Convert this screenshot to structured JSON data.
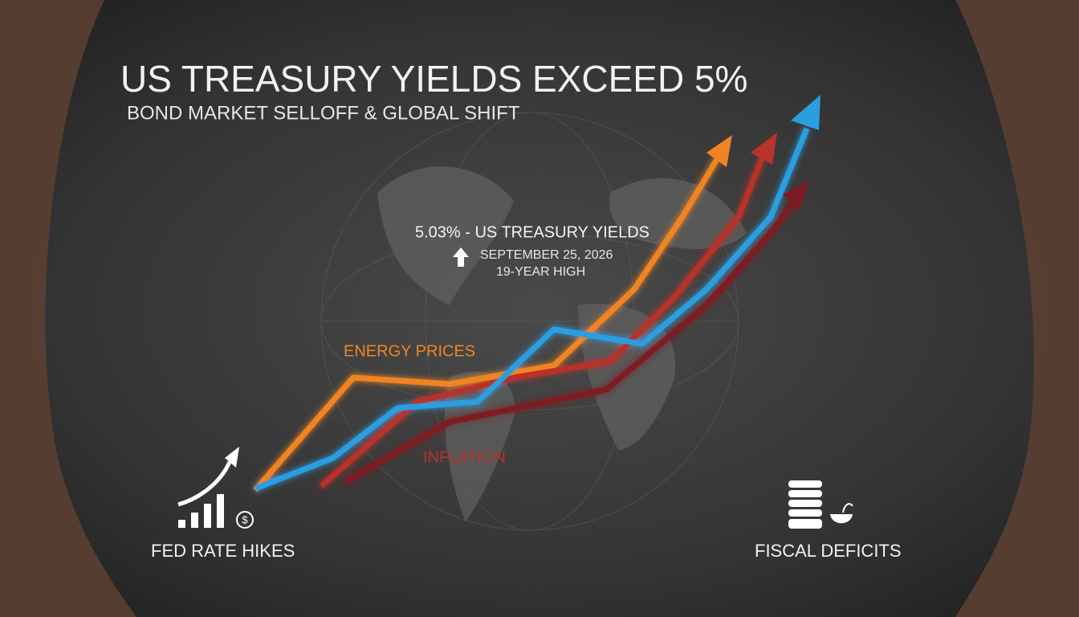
{
  "header": {
    "title": "US TREASURY YIELDS EXCEED 5%",
    "subtitle": "BOND MARKET SELLOFF & GLOBAL SHIFT"
  },
  "callout": {
    "headline": "5.03% - US TREASURY YIELDS",
    "date": "SEPTEMBER 25, 2026",
    "note": "19-YEAR HIGH"
  },
  "line_labels": {
    "energy": "ENERGY PRICES",
    "inflation": "INFLATION"
  },
  "icons": {
    "fed": {
      "label": "FED RATE HIKES",
      "symbol": "$"
    },
    "fiscal": {
      "label": "FISCAL DEFICITS"
    }
  }
}
